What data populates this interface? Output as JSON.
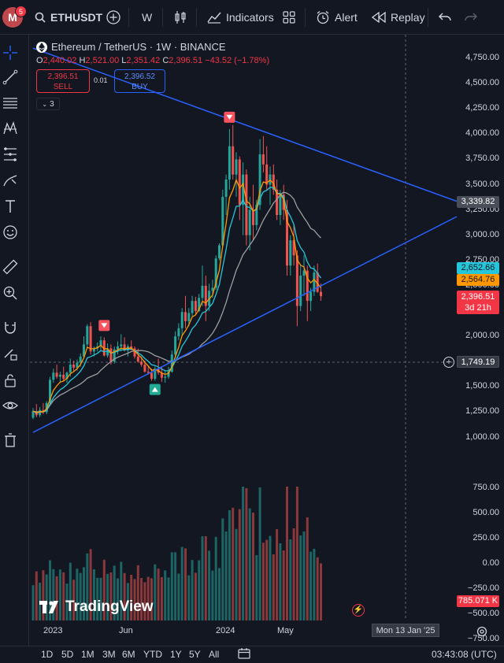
{
  "topbar": {
    "avatar_letter": "M",
    "notification_count": "5",
    "symbol": "ETHUSDT",
    "interval": "W",
    "indicators_label": "Indicators",
    "alert_label": "Alert",
    "replay_label": "Replay"
  },
  "legend": {
    "title": "Ethereum / TetherUS · 1W · BINANCE",
    "open_key": "O",
    "open": "2,440.02",
    "high_key": "H",
    "high": "2,521.00",
    "low_key": "L",
    "low": "2,351.42",
    "close_key": "C",
    "close": "2,396.51",
    "change": "−43.52 (−1.78%)",
    "sell_price": "2,396.51",
    "sell_label": "SELL",
    "spread": "0.01",
    "buy_price": "2,396.52",
    "buy_label": "BUY",
    "collapsed_count": "3"
  },
  "price_axis": {
    "ticks": [
      "4,750.00",
      "4,500.00",
      "4,250.00",
      "4,000.00",
      "3,750.00",
      "3,500.00",
      "3,250.00",
      "3,000.00",
      "2,750.00",
      "2,500.00",
      "2,000.00",
      "1,750.00",
      "1,500.00",
      "1,250.00",
      "1,000.00"
    ],
    "volume_ticks": [
      "750.00",
      "500.00",
      "250.00",
      "0.00",
      "−250.00",
      "−500.00",
      "−750.00"
    ],
    "tag_gray": "3,339.82",
    "tag_cyan": "2,652.66",
    "tag_orange": "2,564.76",
    "tag_red_price": "2,396.51",
    "tag_red_countdown": "3d 21h",
    "crosshair_price": "1,749.19",
    "volume_tag": "785.071 K"
  },
  "time_axis": {
    "labels": [
      "2023",
      "Jun",
      "2024",
      "May"
    ],
    "crosshair_date": "Mon 13 Jan '25"
  },
  "brand": "TradingView",
  "bottombar": {
    "ranges": [
      "1D",
      "5D",
      "1M",
      "3M",
      "6M",
      "YTD",
      "1Y",
      "5Y",
      "All"
    ],
    "clock": "03:43:08 (UTC)"
  },
  "colors": {
    "background": "#131722",
    "up": "#26a69a",
    "down": "#ef5350",
    "trendline": "#2962ff",
    "ma_fast": "#ff9800",
    "ma_mid": "#26c6da",
    "ma_slow": "#9e9e9e"
  },
  "chart_data": {
    "type": "candlestick",
    "symbol": "ETHUSDT",
    "interval": "1W",
    "exchange": "BINANCE",
    "y_range": [
      800,
      4800
    ],
    "last_close": 2396.51,
    "candles": [
      {
        "o": 1195,
        "h": 1290,
        "l": 1180,
        "c": 1260
      },
      {
        "o": 1260,
        "h": 1330,
        "l": 1200,
        "c": 1220
      },
      {
        "o": 1220,
        "h": 1300,
        "l": 1200,
        "c": 1270
      },
      {
        "o": 1270,
        "h": 1340,
        "l": 1230,
        "c": 1250
      },
      {
        "o": 1250,
        "h": 1360,
        "l": 1230,
        "c": 1340
      },
      {
        "o": 1340,
        "h": 1600,
        "l": 1320,
        "c": 1570
      },
      {
        "o": 1570,
        "h": 1680,
        "l": 1540,
        "c": 1640
      },
      {
        "o": 1640,
        "h": 1720,
        "l": 1580,
        "c": 1600
      },
      {
        "o": 1600,
        "h": 1650,
        "l": 1540,
        "c": 1620
      },
      {
        "o": 1620,
        "h": 1700,
        "l": 1560,
        "c": 1580
      },
      {
        "o": 1580,
        "h": 1650,
        "l": 1540,
        "c": 1640
      },
      {
        "o": 1640,
        "h": 1780,
        "l": 1600,
        "c": 1720
      },
      {
        "o": 1720,
        "h": 1760,
        "l": 1650,
        "c": 1690
      },
      {
        "o": 1690,
        "h": 1770,
        "l": 1660,
        "c": 1740
      },
      {
        "o": 1740,
        "h": 1830,
        "l": 1700,
        "c": 1800
      },
      {
        "o": 1800,
        "h": 2000,
        "l": 1780,
        "c": 1920
      },
      {
        "o": 1920,
        "h": 2120,
        "l": 1880,
        "c": 2100
      },
      {
        "o": 2100,
        "h": 2140,
        "l": 1820,
        "c": 1850
      },
      {
        "o": 1850,
        "h": 1900,
        "l": 1800,
        "c": 1880
      },
      {
        "o": 1880,
        "h": 1940,
        "l": 1850,
        "c": 1900
      },
      {
        "o": 1900,
        "h": 2000,
        "l": 1860,
        "c": 1960
      },
      {
        "o": 1960,
        "h": 1990,
        "l": 1800,
        "c": 1810
      },
      {
        "o": 1810,
        "h": 1930,
        "l": 1790,
        "c": 1880
      },
      {
        "o": 1880,
        "h": 1920,
        "l": 1720,
        "c": 1750
      },
      {
        "o": 1750,
        "h": 1900,
        "l": 1730,
        "c": 1870
      },
      {
        "o": 1870,
        "h": 1950,
        "l": 1820,
        "c": 1900
      },
      {
        "o": 1900,
        "h": 2020,
        "l": 1850,
        "c": 1920
      },
      {
        "o": 1920,
        "h": 1990,
        "l": 1850,
        "c": 1860
      },
      {
        "o": 1860,
        "h": 1920,
        "l": 1800,
        "c": 1900
      },
      {
        "o": 1900,
        "h": 1960,
        "l": 1860,
        "c": 1880
      },
      {
        "o": 1880,
        "h": 1900,
        "l": 1780,
        "c": 1800
      },
      {
        "o": 1800,
        "h": 1880,
        "l": 1740,
        "c": 1750
      },
      {
        "o": 1750,
        "h": 1800,
        "l": 1700,
        "c": 1720
      },
      {
        "o": 1720,
        "h": 1760,
        "l": 1640,
        "c": 1650
      },
      {
        "o": 1650,
        "h": 1700,
        "l": 1620,
        "c": 1640
      },
      {
        "o": 1640,
        "h": 1680,
        "l": 1560,
        "c": 1580
      },
      {
        "o": 1580,
        "h": 1700,
        "l": 1560,
        "c": 1680
      },
      {
        "o": 1680,
        "h": 1780,
        "l": 1620,
        "c": 1640
      },
      {
        "o": 1640,
        "h": 1700,
        "l": 1550,
        "c": 1590
      },
      {
        "o": 1590,
        "h": 1660,
        "l": 1540,
        "c": 1600
      },
      {
        "o": 1600,
        "h": 1700,
        "l": 1580,
        "c": 1650
      },
      {
        "o": 1650,
        "h": 1860,
        "l": 1640,
        "c": 1820
      },
      {
        "o": 1820,
        "h": 2050,
        "l": 1780,
        "c": 2000
      },
      {
        "o": 2000,
        "h": 2130,
        "l": 1960,
        "c": 2080
      },
      {
        "o": 2080,
        "h": 2280,
        "l": 2000,
        "c": 2240
      },
      {
        "o": 2240,
        "h": 2400,
        "l": 2080,
        "c": 2150
      },
      {
        "o": 2150,
        "h": 2280,
        "l": 2100,
        "c": 2230
      },
      {
        "o": 2230,
        "h": 2400,
        "l": 2190,
        "c": 2350
      },
      {
        "o": 2350,
        "h": 2390,
        "l": 2220,
        "c": 2250
      },
      {
        "o": 2250,
        "h": 2420,
        "l": 2240,
        "c": 2380
      },
      {
        "o": 2380,
        "h": 2700,
        "l": 2300,
        "c": 2500
      },
      {
        "o": 2500,
        "h": 2600,
        "l": 2150,
        "c": 2300
      },
      {
        "o": 2300,
        "h": 2520,
        "l": 2250,
        "c": 2450
      },
      {
        "o": 2450,
        "h": 2560,
        "l": 2380,
        "c": 2480
      },
      {
        "o": 2480,
        "h": 2800,
        "l": 2460,
        "c": 2770
      },
      {
        "o": 2770,
        "h": 2920,
        "l": 2750,
        "c": 2900
      },
      {
        "o": 2900,
        "h": 3450,
        "l": 2880,
        "c": 3380
      },
      {
        "o": 3380,
        "h": 3600,
        "l": 3200,
        "c": 3550
      },
      {
        "o": 3550,
        "h": 4050,
        "l": 3450,
        "c": 3880
      },
      {
        "o": 3880,
        "h": 4090,
        "l": 3550,
        "c": 3600
      },
      {
        "o": 3600,
        "h": 3820,
        "l": 3380,
        "c": 3750
      },
      {
        "o": 3750,
        "h": 3780,
        "l": 3150,
        "c": 3300
      },
      {
        "o": 3300,
        "h": 3720,
        "l": 3000,
        "c": 3600
      },
      {
        "o": 3600,
        "h": 3650,
        "l": 2900,
        "c": 3000
      },
      {
        "o": 3000,
        "h": 3380,
        "l": 2850,
        "c": 3250
      },
      {
        "o": 3250,
        "h": 3500,
        "l": 2950,
        "c": 3100
      },
      {
        "o": 3100,
        "h": 3350,
        "l": 3050,
        "c": 3300
      },
      {
        "o": 3300,
        "h": 3950,
        "l": 3250,
        "c": 3800
      },
      {
        "o": 3800,
        "h": 3980,
        "l": 3620,
        "c": 3700
      },
      {
        "o": 3700,
        "h": 3880,
        "l": 3450,
        "c": 3500
      },
      {
        "o": 3500,
        "h": 3680,
        "l": 3300,
        "c": 3600
      },
      {
        "o": 3600,
        "h": 3700,
        "l": 3400,
        "c": 3450
      },
      {
        "o": 3450,
        "h": 3550,
        "l": 3150,
        "c": 3200
      },
      {
        "o": 3200,
        "h": 3450,
        "l": 3100,
        "c": 3400
      },
      {
        "o": 3400,
        "h": 3500,
        "l": 3150,
        "c": 3250
      },
      {
        "o": 3250,
        "h": 3350,
        "l": 2600,
        "c": 2700
      },
      {
        "o": 2700,
        "h": 3000,
        "l": 2600,
        "c": 2950
      },
      {
        "o": 2950,
        "h": 3100,
        "l": 2700,
        "c": 2800
      },
      {
        "o": 2800,
        "h": 2850,
        "l": 2100,
        "c": 2300
      },
      {
        "o": 2300,
        "h": 2700,
        "l": 2250,
        "c": 2600
      },
      {
        "o": 2600,
        "h": 2800,
        "l": 2400,
        "c": 2650
      },
      {
        "o": 2650,
        "h": 2700,
        "l": 2150,
        "c": 2350
      },
      {
        "o": 2350,
        "h": 2480,
        "l": 2250,
        "c": 2440
      },
      {
        "o": 2440,
        "h": 2700,
        "l": 2400,
        "c": 2630
      },
      {
        "o": 2630,
        "h": 2720,
        "l": 2430,
        "c": 2440
      },
      {
        "o": 2440,
        "h": 2521,
        "l": 2351.42,
        "c": 2396.51
      }
    ],
    "ma_fast_last": 2564.76,
    "ma_mid_last": 2652.66,
    "ma_slow_last": 3339.82,
    "volume_last": "785.071 K",
    "trendlines": [
      {
        "from": {
          "index": 0,
          "price": 4850
        },
        "to": {
          "index": 95,
          "price": 3700
        }
      },
      {
        "from": {
          "index": 0,
          "price": 1050
        },
        "to": {
          "index": 95,
          "price": 2670
        }
      }
    ],
    "signals": [
      {
        "index": 21,
        "type": "sell"
      },
      {
        "index": 36,
        "type": "buy"
      },
      {
        "index": 58,
        "type": "sell"
      }
    ]
  }
}
